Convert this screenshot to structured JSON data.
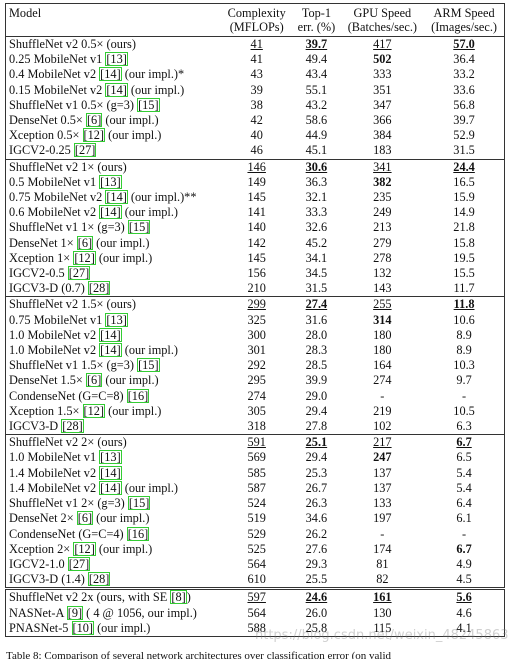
{
  "table": {
    "header": [
      [
        "Model"
      ],
      [
        "Complexity",
        "(MFLOPs)"
      ],
      [
        "Top-1",
        "err. (%)"
      ],
      [
        "GPU Speed",
        "(Batches/sec.)"
      ],
      [
        "ARM Speed",
        "(Images/sec.)"
      ]
    ],
    "groups": [
      [
        {
          "model": "ShuffleNet v2 0.5× (ours)",
          "values": [
            "41",
            "39.7",
            "417",
            "57.0"
          ],
          "bold": [
            1,
            3
          ],
          "underline": [
            0,
            1,
            2,
            3
          ]
        },
        {
          "model": "0.25 MobileNet v1 [13]",
          "values": [
            "41",
            "49.4",
            "502",
            "36.4"
          ],
          "bold": [
            2
          ]
        },
        {
          "model": "0.4 MobileNet v2 [14] (our impl.)*",
          "values": [
            "43",
            "43.4",
            "333",
            "33.2"
          ]
        },
        {
          "model": "0.15 MobileNet v2 [14] (our impl.)",
          "values": [
            "39",
            "55.1",
            "351",
            "33.6"
          ]
        },
        {
          "model": "ShuffleNet v1 0.5× (g=3) [15]",
          "values": [
            "38",
            "43.2",
            "347",
            "56.8"
          ]
        },
        {
          "model": "DenseNet 0.5× [6] (our impl.)",
          "values": [
            "42",
            "58.6",
            "366",
            "39.7"
          ]
        },
        {
          "model": "Xception 0.5× [12] (our impl.)",
          "values": [
            "40",
            "44.9",
            "384",
            "52.9"
          ]
        },
        {
          "model": "IGCV2-0.25 [27]",
          "values": [
            "46",
            "45.1",
            "183",
            "31.5"
          ]
        }
      ],
      [
        {
          "model": "ShuffleNet v2 1× (ours)",
          "values": [
            "146",
            "30.6",
            "341",
            "24.4"
          ],
          "bold": [
            1,
            3
          ],
          "underline": [
            0,
            1,
            2,
            3
          ]
        },
        {
          "model": "0.5 MobileNet v1 [13]",
          "values": [
            "149",
            "36.3",
            "382",
            "16.5"
          ],
          "bold": [
            2
          ]
        },
        {
          "model": "0.75 MobileNet v2 [14] (our impl.)**",
          "values": [
            "145",
            "32.1",
            "235",
            "15.9"
          ]
        },
        {
          "model": "0.6 MobileNet v2 [14] (our impl.)",
          "values": [
            "141",
            "33.3",
            "249",
            "14.9"
          ]
        },
        {
          "model": "ShuffleNet v1 1× (g=3) [15]",
          "values": [
            "140",
            "32.6",
            "213",
            "21.8"
          ]
        },
        {
          "model": "DenseNet 1× [6] (our impl.)",
          "values": [
            "142",
            "45.2",
            "279",
            "15.8"
          ]
        },
        {
          "model": "Xception 1× [12] (our impl.)",
          "values": [
            "145",
            "34.1",
            "278",
            "19.5"
          ]
        },
        {
          "model": "IGCV2-0.5 [27]",
          "values": [
            "156",
            "34.5",
            "132",
            "15.5"
          ]
        },
        {
          "model": "IGCV3-D (0.7) [28]",
          "values": [
            "210",
            "31.5",
            "143",
            "11.7"
          ]
        }
      ],
      [
        {
          "model": "ShuffleNet v2 1.5× (ours)",
          "values": [
            "299",
            "27.4",
            "255",
            "11.8"
          ],
          "bold": [
            1,
            3
          ],
          "underline": [
            0,
            1,
            2,
            3
          ]
        },
        {
          "model": "0.75 MobileNet v1 [13]",
          "values": [
            "325",
            "31.6",
            "314",
            "10.6"
          ],
          "bold": [
            2
          ]
        },
        {
          "model": "1.0 MobileNet v2 [14]",
          "values": [
            "300",
            "28.0",
            "180",
            "8.9"
          ]
        },
        {
          "model": "1.0 MobileNet v2 [14] (our impl.)",
          "values": [
            "301",
            "28.3",
            "180",
            "8.9"
          ]
        },
        {
          "model": "ShuffleNet v1 1.5× (g=3) [15]",
          "values": [
            "292",
            "28.5",
            "164",
            "10.3"
          ]
        },
        {
          "model": "DenseNet 1.5× [6] (our impl.)",
          "values": [
            "295",
            "39.9",
            "274",
            "9.7"
          ]
        },
        {
          "model": "CondenseNet (G=C=8) [16]",
          "values": [
            "274",
            "29.0",
            "-",
            "-"
          ]
        },
        {
          "model": "Xception 1.5× [12] (our impl.)",
          "values": [
            "305",
            "29.4",
            "219",
            "10.5"
          ]
        },
        {
          "model": "IGCV3-D [28]",
          "values": [
            "318",
            "27.8",
            "102",
            "6.3"
          ]
        }
      ],
      [
        {
          "model": "ShuffleNet v2 2× (ours)",
          "values": [
            "591",
            "25.1",
            "217",
            "6.7"
          ],
          "bold": [
            1,
            3
          ],
          "underline": [
            0,
            1,
            2,
            3
          ]
        },
        {
          "model": "1.0 MobileNet v1 [13]",
          "values": [
            "569",
            "29.4",
            "247",
            "6.5"
          ],
          "bold": [
            2
          ]
        },
        {
          "model": "1.4 MobileNet v2 [14]",
          "values": [
            "585",
            "25.3",
            "137",
            "5.4"
          ]
        },
        {
          "model": "1.4 MobileNet v2 [14] (our impl.)",
          "values": [
            "587",
            "26.7",
            "137",
            "5.4"
          ]
        },
        {
          "model": "ShuffleNet v1 2× (g=3) [15]",
          "values": [
            "524",
            "26.3",
            "133",
            "6.4"
          ]
        },
        {
          "model": "DenseNet 2× [6] (our impl.)",
          "values": [
            "519",
            "34.6",
            "197",
            "6.1"
          ]
        },
        {
          "model": "CondenseNet (G=C=4) [16]",
          "values": [
            "529",
            "26.2",
            "-",
            "-"
          ]
        },
        {
          "model": "Xception 2× [12] (our impl.)",
          "values": [
            "525",
            "27.6",
            "174",
            "6.7"
          ],
          "bold": [
            3
          ]
        },
        {
          "model": "IGCV2-1.0 [27]",
          "values": [
            "564",
            "29.3",
            "81",
            "4.9"
          ]
        },
        {
          "model": "IGCV3-D (1.4) [28]",
          "values": [
            "610",
            "25.5",
            "82",
            "4.5"
          ]
        }
      ],
      [
        {
          "model": "ShuffleNet v2 2x (ours, with SE [8])",
          "values": [
            "597",
            "24.6",
            "161",
            "5.6"
          ],
          "bold": [
            1,
            2,
            3
          ],
          "underline": [
            0,
            1,
            2,
            3
          ]
        },
        {
          "model": "NASNet-A [9] ( 4 @ 1056, our impl.)",
          "values": [
            "564",
            "26.0",
            "130",
            "4.6"
          ]
        },
        {
          "model": "PNASNet-5 [10] (our impl.)",
          "values": [
            "588",
            "25.8",
            "115",
            "4.1"
          ]
        }
      ]
    ],
    "caption": "Table 8: Comparison of several network architectures over classification error (on valid",
    "watermark": "https://blog.csdn.net/weixin_48245863"
  }
}
